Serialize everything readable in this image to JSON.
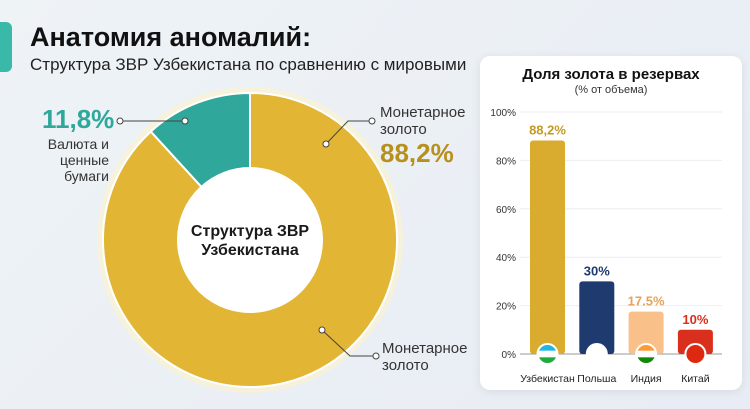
{
  "header": {
    "title": "Анатомия аномалий:",
    "subtitle": "Структура ЗВР Узбекистана по сравнению с мировыми"
  },
  "colors": {
    "gold": "#e2b534",
    "teal": "#2fa79a",
    "navy": "#1e3a6e",
    "peach": "#f9c08a",
    "red": "#d9301e",
    "accent": "#3bb9a8"
  },
  "chart_data": [
    {
      "type": "pie",
      "title": "Структура ЗВР Узбекистана",
      "slices": [
        {
          "label": "Валюта и ценные бумаги",
          "value": 11.8,
          "value_label": "11,8%",
          "color": "#2fa79a"
        },
        {
          "label": "Монетарное золото",
          "value": 88.2,
          "value_label": "88,2%",
          "color": "#e2b534"
        }
      ],
      "extra_label": "Монетарное золото"
    },
    {
      "type": "bar",
      "title": "Доля золота в резервах",
      "subtitle": "(% от объема)",
      "categories": [
        "Узбекистан",
        "Польша",
        "Индия",
        "Китай"
      ],
      "values": [
        88.2,
        30,
        17.5,
        10
      ],
      "value_labels": [
        "88,2%",
        "30%",
        "17.5%",
        "10%"
      ],
      "colors": [
        "#d9ab2e",
        "#1e3a6e",
        "#f9c08a",
        "#d9301e"
      ],
      "label_colors": [
        "#c49a22",
        "#1e3a6e",
        "#e8a25a",
        "#d9301e"
      ],
      "ylim": [
        0,
        100
      ],
      "yticks": [
        "0%",
        "20%",
        "40%",
        "60%",
        "80%",
        "100%"
      ],
      "grid": true,
      "flags": [
        "uzbekistan-flag",
        "poland-flag",
        "india-flag",
        "china-flag"
      ]
    }
  ]
}
